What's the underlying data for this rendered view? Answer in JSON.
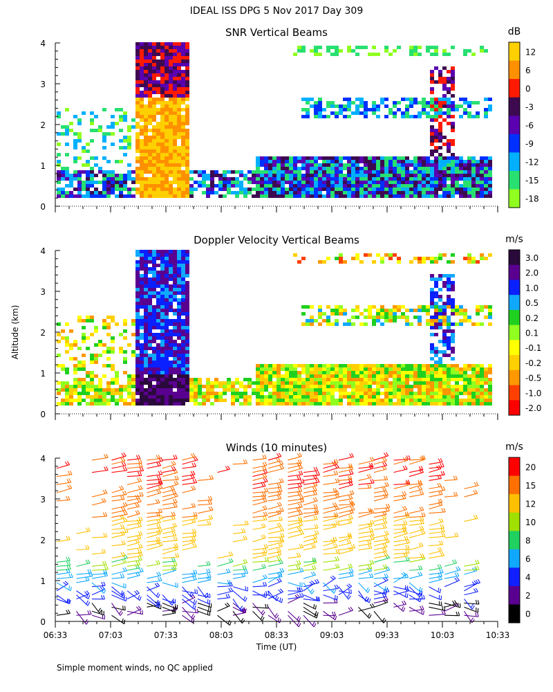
{
  "title": "IDEAL ISS DPG    5 Nov 2017 Day 309",
  "ylabel": "Altitude (km)",
  "footnote": "Simple moment winds, no QC applied",
  "chart_data": [
    {
      "type": "heatmap",
      "title": "SNR Vertical Beams",
      "units": "dB",
      "x_range_ut": [
        "06:33",
        "10:33"
      ],
      "ylim": [
        0,
        4
      ],
      "ytick_labels": [
        "0",
        "1",
        "2",
        "3",
        "4"
      ],
      "colorbar_labels": [
        "12",
        "6",
        "0",
        "-3",
        "-6",
        "-9",
        "-12",
        "-15",
        "-18"
      ],
      "colorbar_colors": [
        "#ffd000",
        "#ff9000",
        "#ff1a00",
        "#3d0a50",
        "#5a00b0",
        "#0030ff",
        "#00b0ff",
        "#28e070",
        "#90ff20"
      ]
    },
    {
      "type": "heatmap",
      "title": "Doppler Velocity Vertical Beams",
      "units": "m/s",
      "x_range_ut": [
        "06:33",
        "10:33"
      ],
      "ylim": [
        0,
        4
      ],
      "ytick_labels": [
        "0",
        "1",
        "2",
        "3",
        "4"
      ],
      "colorbar_labels": [
        "3.0",
        "2.0",
        "1.0",
        "0.5",
        "0.2",
        "0.1",
        "-0.1",
        "-0.2",
        "-0.5",
        "-1.0",
        "-2.0"
      ],
      "colorbar_colors": [
        "#2a0a3a",
        "#5a0090",
        "#0a20ff",
        "#10a8ff",
        "#20d020",
        "#90ff20",
        "#ffff00",
        "#ffd000",
        "#ff9800",
        "#ff4000",
        "#ff0000"
      ]
    },
    {
      "type": "scatter",
      "title": "Winds (10 minutes)",
      "units": "m/s",
      "xlabel": "Time (UT)",
      "ylim": [
        0,
        4
      ],
      "ytick_labels": [
        "0",
        "1",
        "2",
        "3",
        "4"
      ],
      "x_ticks": [
        "06:33",
        "07:03",
        "07:33",
        "08:03",
        "08:33",
        "09:03",
        "09:33",
        "10:03",
        "10:33"
      ],
      "colorbar_labels": [
        "20",
        "15",
        "12",
        "10",
        "8",
        "6",
        "4",
        "2",
        "0"
      ],
      "colorbar_colors": [
        "#ff0000",
        "#ff7000",
        "#ffc000",
        "#a0e000",
        "#20d060",
        "#10a8ff",
        "#1020ff",
        "#5a0090",
        "#000000"
      ]
    }
  ]
}
